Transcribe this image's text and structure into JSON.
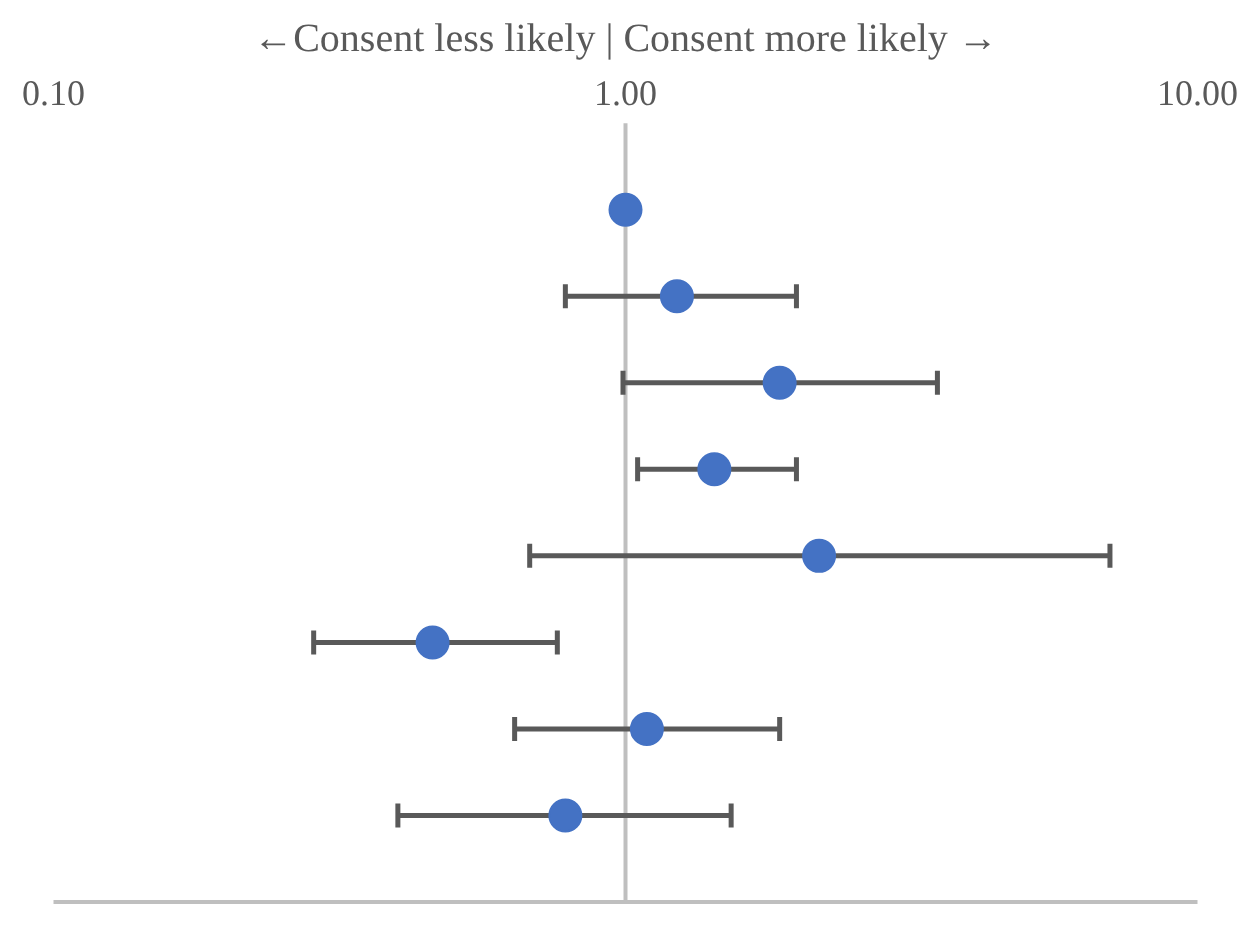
{
  "chart_data": {
    "type": "scatter",
    "orientation": "horizontal",
    "xlabel": "←Consent less likely | Consent more likely →",
    "categories": [
      null,
      null,
      null,
      null,
      null,
      null,
      null,
      null
    ],
    "values": [
      1.0,
      1.23,
      1.86,
      1.43,
      2.18,
      0.46,
      1.09,
      0.785
    ],
    "errors": [
      null,
      [
        0.785,
        1.99
      ],
      [
        0.99,
        3.51
      ],
      [
        1.05,
        1.99
      ],
      [
        0.68,
        7.03
      ],
      [
        0.285,
        0.76
      ],
      [
        0.64,
        1.86
      ],
      [
        0.4,
        1.53
      ]
    ],
    "color": "#4472c4",
    "marker": "circle",
    "log": "x",
    "xlim": [
      0.1,
      10
    ],
    "xticks": [
      {
        "value": 0.1,
        "label": "0.10"
      },
      {
        "value": 1,
        "label": "1.00"
      },
      {
        "value": 10,
        "label": "10.00"
      }
    ],
    "ref_lines": [
      {
        "axis": "x",
        "value": 1,
        "color": "#bfbfbf"
      }
    ]
  }
}
